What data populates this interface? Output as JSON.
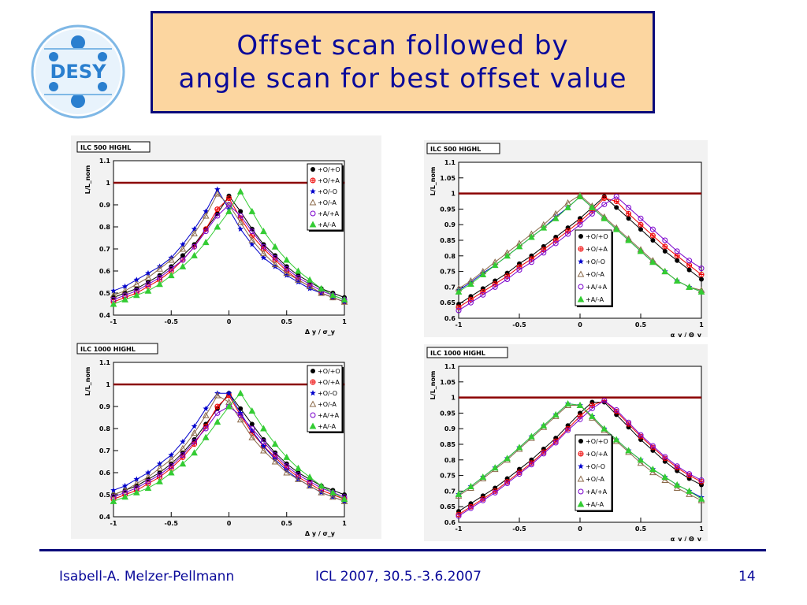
{
  "title": {
    "line1": "Offset scan followed by",
    "line2": "angle scan for best offset value"
  },
  "logo": {
    "text": "DESY",
    "icon": "desy-logo-icon"
  },
  "footer": {
    "author": "Isabell-A. Melzer-Pellmann",
    "conference": "ICL 2007, 30.5.-3.6.2007",
    "page": "14"
  },
  "colors": {
    "title_text": "#0a0a9a",
    "title_bg": "#fcd6a0",
    "title_border": "#0a0a7a",
    "reference_line": "#8b0000"
  },
  "legend_labels": [
    "+O/+O",
    "+O/+A",
    "+O/-O",
    "+O/-A",
    "+A/+A",
    "+A/-A"
  ],
  "chart_data": [
    {
      "type": "line",
      "panel_label": "ILC 500 HIGHL",
      "ylabel": "L/L_nom",
      "xlabel": "Δ y / σ_y",
      "xlim": [
        -1,
        1
      ],
      "ylim": [
        0.4,
        1.1
      ],
      "yticks": [
        0.4,
        0.5,
        0.6,
        0.7,
        0.8,
        0.9,
        1,
        1.1
      ],
      "xticks": [
        -1,
        -0.5,
        0,
        0.5,
        1
      ],
      "reference_line": 1,
      "legend_position": "top-right",
      "x": [
        -1,
        -0.9,
        -0.8,
        -0.7,
        -0.6,
        -0.5,
        -0.4,
        -0.3,
        -0.2,
        -0.1,
        0,
        0.1,
        0.2,
        0.3,
        0.4,
        0.5,
        0.6,
        0.7,
        0.8,
        0.9,
        1
      ],
      "series": [
        {
          "name": "+O/+O",
          "color": "#000000",
          "marker": "circle-filled",
          "values": [
            0.48,
            0.5,
            0.52,
            0.55,
            0.58,
            0.62,
            0.67,
            0.72,
            0.79,
            0.86,
            0.94,
            0.87,
            0.79,
            0.72,
            0.67,
            0.62,
            0.58,
            0.55,
            0.52,
            0.5,
            0.48
          ]
        },
        {
          "name": "+O/+A",
          "color": "#ee0000",
          "marker": "cross-circle",
          "values": [
            0.46,
            0.48,
            0.5,
            0.53,
            0.56,
            0.6,
            0.65,
            0.71,
            0.79,
            0.88,
            0.93,
            0.84,
            0.76,
            0.7,
            0.65,
            0.6,
            0.56,
            0.53,
            0.5,
            0.48,
            0.46
          ]
        },
        {
          "name": "+O/-O",
          "color": "#0000cc",
          "marker": "star",
          "values": [
            0.51,
            0.53,
            0.56,
            0.59,
            0.62,
            0.66,
            0.72,
            0.79,
            0.87,
            0.97,
            0.88,
            0.79,
            0.72,
            0.66,
            0.62,
            0.58,
            0.55,
            0.52,
            0.5,
            0.48,
            0.46
          ]
        },
        {
          "name": "+O/-A",
          "color": "#8b6a4a",
          "marker": "triangle-open",
          "values": [
            0.49,
            0.51,
            0.54,
            0.57,
            0.61,
            0.65,
            0.7,
            0.77,
            0.85,
            0.95,
            0.9,
            0.82,
            0.74,
            0.68,
            0.63,
            0.59,
            0.56,
            0.53,
            0.5,
            0.48,
            0.46
          ]
        },
        {
          "name": "+A/+A",
          "color": "#7a00cc",
          "marker": "circle-open",
          "values": [
            0.47,
            0.49,
            0.51,
            0.54,
            0.57,
            0.61,
            0.65,
            0.71,
            0.78,
            0.85,
            0.9,
            0.85,
            0.78,
            0.71,
            0.66,
            0.61,
            0.57,
            0.54,
            0.51,
            0.49,
            0.47
          ]
        },
        {
          "name": "+A/-A",
          "color": "#33cc33",
          "marker": "triangle-filled",
          "values": [
            0.45,
            0.47,
            0.49,
            0.51,
            0.54,
            0.58,
            0.62,
            0.67,
            0.73,
            0.8,
            0.87,
            0.96,
            0.87,
            0.78,
            0.71,
            0.65,
            0.6,
            0.56,
            0.52,
            0.49,
            0.47
          ]
        }
      ]
    },
    {
      "type": "line",
      "panel_label": "ILC 1000 HIGHL",
      "ylabel": "L/L_nom",
      "xlabel": "Δ y / σ_y",
      "xlim": [
        -1,
        1
      ],
      "ylim": [
        0.4,
        1.1
      ],
      "yticks": [
        0.4,
        0.5,
        0.6,
        0.7,
        0.8,
        0.9,
        1,
        1.1
      ],
      "xticks": [
        -1,
        -0.5,
        0,
        0.5,
        1
      ],
      "reference_line": 1,
      "legend_position": "top-right",
      "x": [
        -1,
        -0.9,
        -0.8,
        -0.7,
        -0.6,
        -0.5,
        -0.4,
        -0.3,
        -0.2,
        -0.1,
        0,
        0.1,
        0.2,
        0.3,
        0.4,
        0.5,
        0.6,
        0.7,
        0.8,
        0.9,
        1
      ],
      "series": [
        {
          "name": "+O/+O",
          "color": "#000000",
          "marker": "circle-filled",
          "values": [
            0.5,
            0.52,
            0.54,
            0.57,
            0.6,
            0.64,
            0.69,
            0.75,
            0.82,
            0.89,
            0.96,
            0.89,
            0.82,
            0.75,
            0.69,
            0.64,
            0.6,
            0.57,
            0.54,
            0.52,
            0.5
          ]
        },
        {
          "name": "+O/+A",
          "color": "#ee0000",
          "marker": "cross-circle",
          "values": [
            0.48,
            0.5,
            0.52,
            0.55,
            0.58,
            0.62,
            0.67,
            0.73,
            0.81,
            0.9,
            0.95,
            0.86,
            0.78,
            0.72,
            0.67,
            0.62,
            0.58,
            0.55,
            0.52,
            0.5,
            0.48
          ]
        },
        {
          "name": "+O/-O",
          "color": "#0000cc",
          "marker": "star",
          "values": [
            0.52,
            0.54,
            0.57,
            0.6,
            0.64,
            0.68,
            0.74,
            0.81,
            0.89,
            0.96,
            0.96,
            0.87,
            0.79,
            0.72,
            0.66,
            0.61,
            0.57,
            0.54,
            0.51,
            0.49,
            0.47
          ]
        },
        {
          "name": "+O/-A",
          "color": "#8b6a4a",
          "marker": "triangle-open",
          "values": [
            0.5,
            0.52,
            0.55,
            0.58,
            0.62,
            0.66,
            0.71,
            0.78,
            0.86,
            0.95,
            0.92,
            0.84,
            0.76,
            0.7,
            0.65,
            0.6,
            0.57,
            0.54,
            0.51,
            0.49,
            0.47
          ]
        },
        {
          "name": "+A/+A",
          "color": "#7a00cc",
          "marker": "circle-open",
          "values": [
            0.49,
            0.51,
            0.53,
            0.56,
            0.59,
            0.63,
            0.68,
            0.74,
            0.8,
            0.87,
            0.9,
            0.86,
            0.8,
            0.74,
            0.68,
            0.63,
            0.59,
            0.56,
            0.53,
            0.51,
            0.49
          ]
        },
        {
          "name": "+A/-A",
          "color": "#33cc33",
          "marker": "triangle-filled",
          "values": [
            0.47,
            0.49,
            0.51,
            0.53,
            0.56,
            0.6,
            0.64,
            0.69,
            0.76,
            0.83,
            0.9,
            0.96,
            0.88,
            0.8,
            0.73,
            0.67,
            0.62,
            0.58,
            0.54,
            0.51,
            0.48
          ]
        }
      ]
    },
    {
      "type": "line",
      "panel_label": "ILC 500 HIGHL",
      "ylabel": "L/L_nom",
      "xlabel": "α_y / Θ_y",
      "xlim": [
        -1,
        1
      ],
      "ylim": [
        0.6,
        1.1
      ],
      "yticks": [
        0.6,
        0.65,
        0.7,
        0.75,
        0.8,
        0.85,
        0.9,
        0.95,
        1,
        1.05,
        1.1
      ],
      "xticks": [
        -1,
        -0.5,
        0,
        0.5,
        1
      ],
      "reference_line": 1,
      "legend_position": "bottom-center",
      "x": [
        -1,
        -0.9,
        -0.8,
        -0.7,
        -0.6,
        -0.5,
        -0.4,
        -0.3,
        -0.2,
        -0.1,
        0,
        0.1,
        0.2,
        0.3,
        0.4,
        0.5,
        0.6,
        0.7,
        0.8,
        0.9,
        1
      ],
      "series": [
        {
          "name": "+O/+O",
          "color": "#000000",
          "marker": "circle-filled",
          "values": [
            0.645,
            0.67,
            0.695,
            0.72,
            0.745,
            0.775,
            0.8,
            0.83,
            0.86,
            0.89,
            0.92,
            0.955,
            0.99,
            0.955,
            0.92,
            0.885,
            0.85,
            0.815,
            0.785,
            0.755,
            0.725
          ]
        },
        {
          "name": "+O/+A",
          "color": "#ee0000",
          "marker": "cross-circle",
          "values": [
            0.635,
            0.66,
            0.685,
            0.71,
            0.735,
            0.765,
            0.79,
            0.82,
            0.85,
            0.88,
            0.91,
            0.945,
            0.985,
            0.975,
            0.935,
            0.9,
            0.865,
            0.83,
            0.8,
            0.77,
            0.74
          ]
        },
        {
          "name": "+O/-O",
          "color": "#0000cc",
          "marker": "star",
          "values": [
            0.69,
            0.715,
            0.745,
            0.77,
            0.8,
            0.83,
            0.86,
            0.89,
            0.925,
            0.955,
            0.99,
            0.955,
            0.92,
            0.885,
            0.85,
            0.815,
            0.78,
            0.75,
            0.72,
            0.7,
            0.685
          ]
        },
        {
          "name": "+O/-A",
          "color": "#8b6a4a",
          "marker": "triangle-open",
          "values": [
            0.695,
            0.72,
            0.75,
            0.78,
            0.81,
            0.84,
            0.87,
            0.9,
            0.935,
            0.97,
            0.995,
            0.96,
            0.925,
            0.89,
            0.855,
            0.82,
            0.785,
            0.75,
            0.72,
            0.7,
            0.69
          ]
        },
        {
          "name": "+A/+A",
          "color": "#7a00cc",
          "marker": "circle-open",
          "values": [
            0.625,
            0.65,
            0.675,
            0.7,
            0.725,
            0.755,
            0.78,
            0.81,
            0.84,
            0.87,
            0.9,
            0.935,
            0.965,
            0.99,
            0.955,
            0.92,
            0.885,
            0.85,
            0.815,
            0.785,
            0.76
          ]
        },
        {
          "name": "+A/-A",
          "color": "#33cc33",
          "marker": "triangle-filled",
          "values": [
            0.685,
            0.71,
            0.74,
            0.77,
            0.8,
            0.83,
            0.86,
            0.89,
            0.92,
            0.955,
            0.99,
            0.955,
            0.92,
            0.885,
            0.85,
            0.815,
            0.78,
            0.75,
            0.72,
            0.7,
            0.685
          ]
        }
      ]
    },
    {
      "type": "line",
      "panel_label": "ILC 1000 HIGHL",
      "ylabel": "L/L_nom",
      "xlabel": "α_y / Θ_y",
      "xlim": [
        -1,
        1
      ],
      "ylim": [
        0.6,
        1.1
      ],
      "yticks": [
        0.6,
        0.65,
        0.7,
        0.75,
        0.8,
        0.85,
        0.9,
        0.95,
        1,
        1.05,
        1.1
      ],
      "xticks": [
        -1,
        -0.5,
        0,
        0.5,
        1
      ],
      "reference_line": 1,
      "legend_position": "bottom-center",
      "x": [
        -1,
        -0.9,
        -0.8,
        -0.7,
        -0.6,
        -0.5,
        -0.4,
        -0.3,
        -0.2,
        -0.1,
        0,
        0.1,
        0.2,
        0.3,
        0.4,
        0.5,
        0.6,
        0.7,
        0.8,
        0.9,
        1
      ],
      "series": [
        {
          "name": "+O/+O",
          "color": "#000000",
          "marker": "circle-filled",
          "values": [
            0.635,
            0.66,
            0.685,
            0.71,
            0.74,
            0.77,
            0.8,
            0.835,
            0.87,
            0.91,
            0.95,
            0.985,
            0.985,
            0.945,
            0.905,
            0.865,
            0.83,
            0.795,
            0.765,
            0.74,
            0.72
          ]
        },
        {
          "name": "+O/+A",
          "color": "#ee0000",
          "marker": "cross-circle",
          "values": [
            0.625,
            0.65,
            0.675,
            0.7,
            0.73,
            0.76,
            0.79,
            0.825,
            0.86,
            0.9,
            0.94,
            0.975,
            0.99,
            0.955,
            0.915,
            0.875,
            0.84,
            0.805,
            0.775,
            0.75,
            0.73
          ]
        },
        {
          "name": "+O/-O",
          "color": "#0000cc",
          "marker": "star",
          "values": [
            0.69,
            0.715,
            0.745,
            0.775,
            0.805,
            0.84,
            0.875,
            0.91,
            0.945,
            0.98,
            0.975,
            0.94,
            0.9,
            0.865,
            0.83,
            0.8,
            0.77,
            0.745,
            0.72,
            0.7,
            0.68
          ]
        },
        {
          "name": "+O/-A",
          "color": "#8b6a4a",
          "marker": "triangle-open",
          "values": [
            0.685,
            0.71,
            0.74,
            0.77,
            0.8,
            0.835,
            0.87,
            0.905,
            0.94,
            0.975,
            0.975,
            0.935,
            0.895,
            0.86,
            0.825,
            0.79,
            0.76,
            0.735,
            0.71,
            0.69,
            0.67
          ]
        },
        {
          "name": "+A/+A",
          "color": "#7a00cc",
          "marker": "circle-open",
          "values": [
            0.62,
            0.645,
            0.67,
            0.695,
            0.725,
            0.755,
            0.785,
            0.82,
            0.855,
            0.895,
            0.93,
            0.965,
            0.99,
            0.96,
            0.92,
            0.88,
            0.845,
            0.81,
            0.78,
            0.755,
            0.735
          ]
        },
        {
          "name": "+A/-A",
          "color": "#33cc33",
          "marker": "triangle-filled",
          "values": [
            0.69,
            0.715,
            0.745,
            0.775,
            0.805,
            0.84,
            0.875,
            0.91,
            0.945,
            0.98,
            0.975,
            0.94,
            0.9,
            0.865,
            0.83,
            0.8,
            0.77,
            0.745,
            0.72,
            0.7,
            0.675
          ]
        }
      ]
    }
  ]
}
